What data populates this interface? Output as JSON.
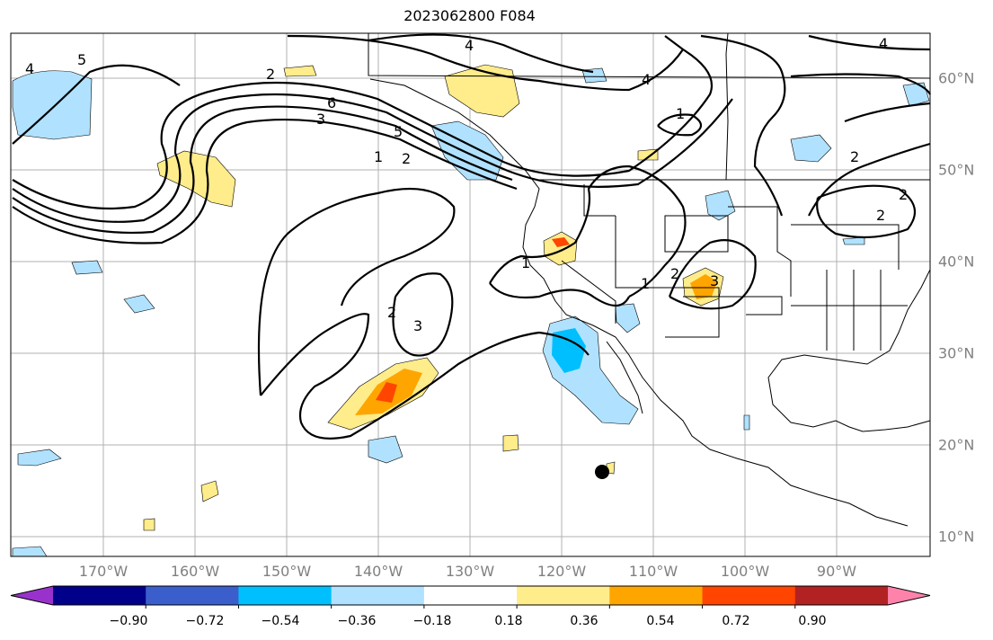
{
  "title": "2023062800 F084",
  "lon_labels": [
    "170°W",
    "160°W",
    "150°W",
    "140°W",
    "130°W",
    "120°W",
    "110°W",
    "100°W",
    "90°W"
  ],
  "lat_labels": [
    "60°N",
    "50°N",
    "40°N",
    "30°N",
    "20°N",
    "10°N"
  ],
  "colorbar": {
    "colors": [
      "#9932CC",
      "#00008B",
      "#3A5FCD",
      "#00BFFF",
      "#B0E2FF",
      "#FFFFFF",
      "#FFEC8B",
      "#FFA500",
      "#FF4500",
      "#B22222",
      "#FF82AB"
    ],
    "labels": [
      "−0.90",
      "−0.72",
      "−0.54",
      "−0.36",
      "−0.18",
      "0.18",
      "0.36",
      "0.54",
      "0.72",
      "0.90"
    ]
  },
  "contour_labels": [
    "5",
    "4",
    "4",
    "4",
    "6",
    "5",
    "3",
    "2",
    "1",
    "1",
    "2",
    "2",
    "2",
    "3",
    "1",
    "1",
    "2",
    "3",
    "2",
    "4",
    "2"
  ]
}
